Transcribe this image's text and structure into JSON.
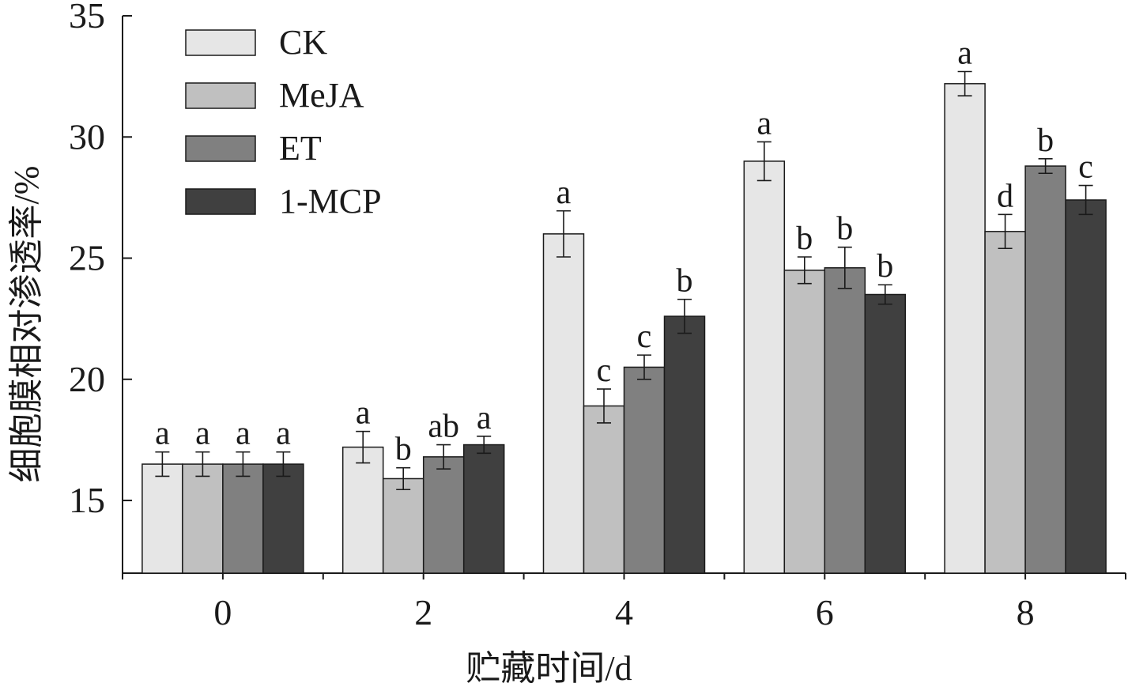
{
  "chart_data": {
    "type": "bar",
    "title": "",
    "xlabel": "贮藏时间/d",
    "ylabel": "细胞膜相对渗透率/%",
    "categories": [
      "0",
      "2",
      "4",
      "6",
      "8"
    ],
    "ylim": [
      12,
      35
    ],
    "yticks": [
      15,
      20,
      25,
      30,
      35
    ],
    "grid": false,
    "legend_position": "top-left",
    "series": [
      {
        "name": "CK",
        "color": "#e6e6e6",
        "values": [
          16.5,
          17.2,
          26.0,
          29.0,
          32.2
        ],
        "errors": [
          0.5,
          0.65,
          0.95,
          0.8,
          0.5
        ],
        "labels": [
          "a",
          "a",
          "a",
          "a",
          "a"
        ]
      },
      {
        "name": "MeJA",
        "color": "#c0c0c0",
        "values": [
          16.5,
          15.9,
          18.9,
          24.5,
          26.1
        ],
        "errors": [
          0.5,
          0.45,
          0.7,
          0.55,
          0.7
        ],
        "labels": [
          "a",
          "b",
          "c",
          "b",
          "d"
        ]
      },
      {
        "name": "ET",
        "color": "#808080",
        "values": [
          16.5,
          16.8,
          20.5,
          24.6,
          28.8
        ],
        "errors": [
          0.5,
          0.5,
          0.5,
          0.85,
          0.3
        ],
        "labels": [
          "a",
          "ab",
          "c",
          "b",
          "b"
        ]
      },
      {
        "name": "1-MCP",
        "color": "#404040",
        "values": [
          16.5,
          17.3,
          22.6,
          23.5,
          27.4
        ],
        "errors": [
          0.5,
          0.35,
          0.7,
          0.4,
          0.6
        ],
        "labels": [
          "a",
          "a",
          "b",
          "b",
          "c"
        ]
      }
    ]
  }
}
